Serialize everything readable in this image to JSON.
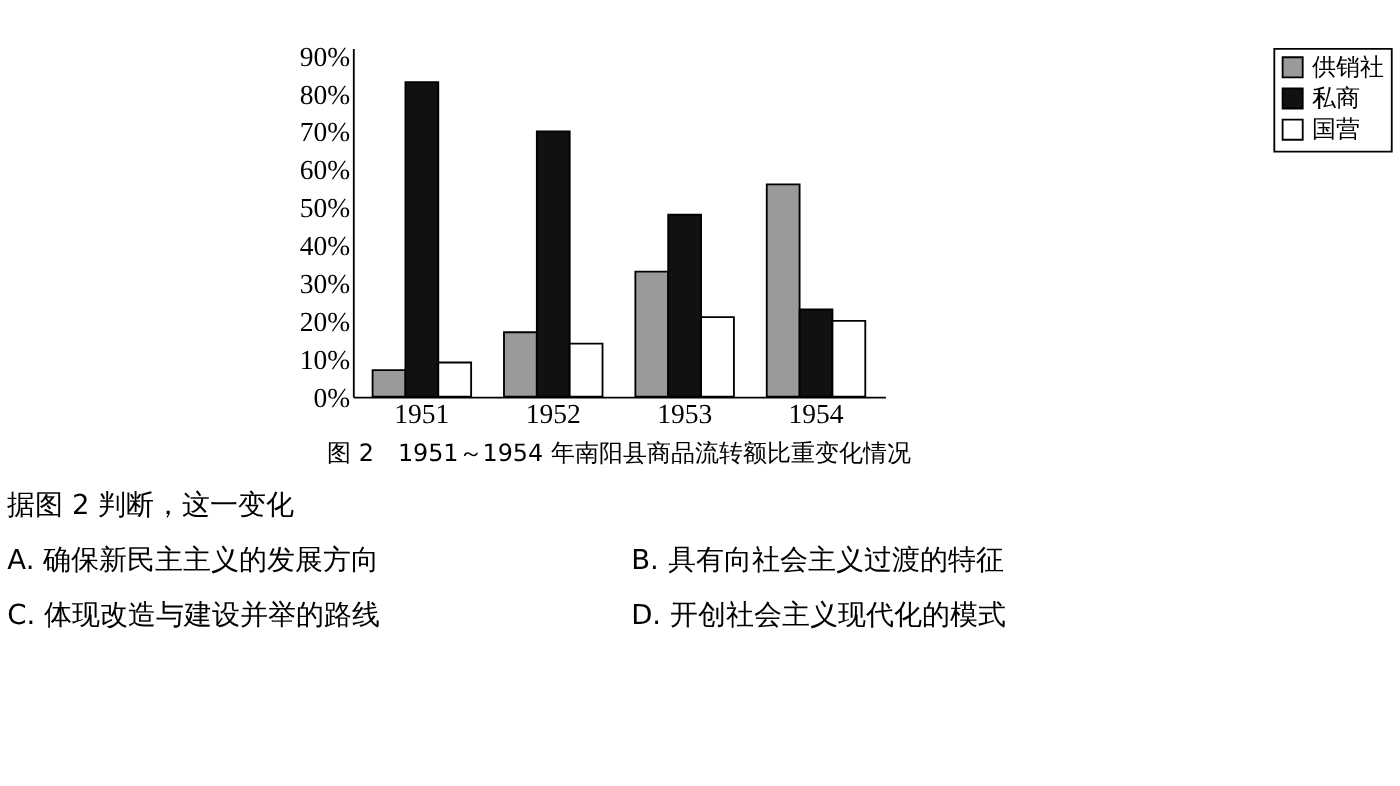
{
  "chart_data": {
    "type": "bar",
    "title": "图 2　1951～1954 年南阳县商品流转额比重变化情况",
    "categories": [
      "1951",
      "1952",
      "1953",
      "1954"
    ],
    "series": [
      {
        "name": "供销社",
        "color": "#9a9a9a",
        "values": [
          7,
          17,
          33,
          56
        ]
      },
      {
        "name": "私商",
        "color": "#111111",
        "values": [
          83,
          70,
          48,
          23
        ]
      },
      {
        "name": "国营",
        "color": "#ffffff",
        "values": [
          9,
          14,
          21,
          20
        ]
      }
    ],
    "ylim": [
      0,
      92
    ],
    "yticks": [
      {
        "value": 0,
        "label": "0%"
      },
      {
        "value": 10,
        "label": "10%"
      },
      {
        "value": 20,
        "label": "20%"
      },
      {
        "value": 30,
        "label": "30%"
      },
      {
        "value": 40,
        "label": "40%"
      },
      {
        "value": 50,
        "label": "50%"
      },
      {
        "value": 60,
        "label": "60%"
      },
      {
        "value": 70,
        "label": "70%"
      },
      {
        "value": 80,
        "label": "80%"
      },
      {
        "value": 90,
        "label": "90%"
      }
    ],
    "grid": false,
    "legend": "right",
    "annotations": [
      "据图 2 判断，这一变化",
      "A. 确保新民主主义的发展方向",
      "B. 具有向社会主义过渡的特征",
      "C. 体现改造与建设并举的路线",
      "D. 开创社会主义现代化的模式"
    ]
  }
}
